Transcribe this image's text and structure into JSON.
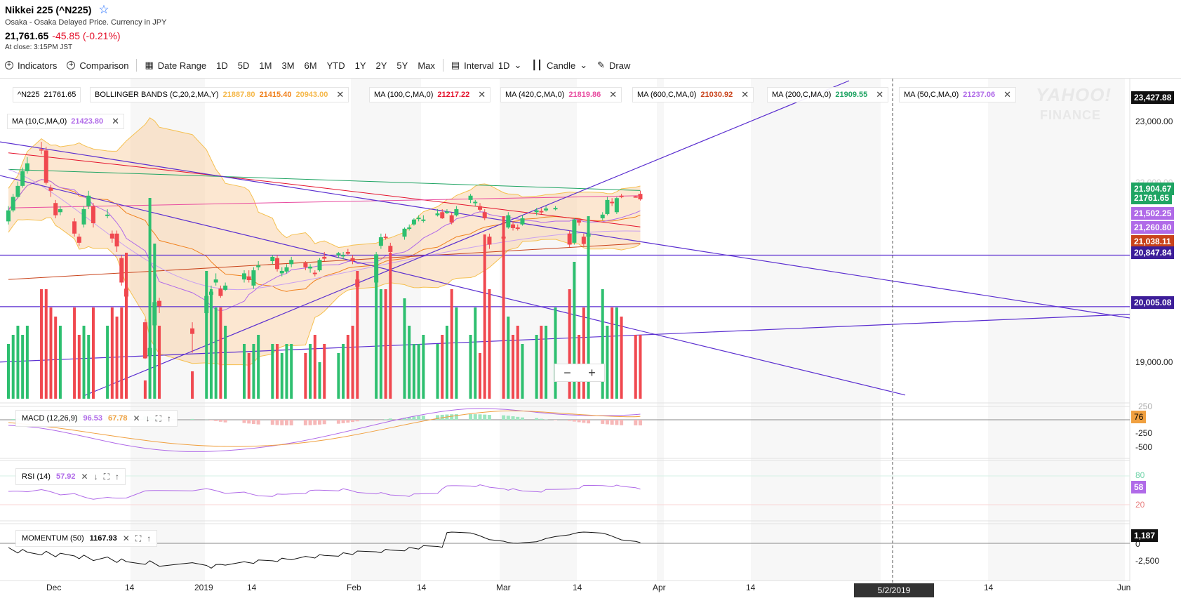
{
  "header": {
    "title": "Nikkei 225 (^N225)",
    "subtitle": "Osaka - Osaka Delayed Price. Currency in JPY",
    "price": "21,761.65",
    "change": "-45.85 (-0.21%)",
    "close_time": "At close: 3:15PM JST"
  },
  "toolbar": {
    "indicators": "Indicators",
    "comparison": "Comparison",
    "date_range": "Date Range",
    "ranges": [
      "1D",
      "5D",
      "1M",
      "3M",
      "6M",
      "YTD",
      "1Y",
      "2Y",
      "5Y",
      "Max"
    ],
    "interval_label": "Interval",
    "interval_value": "1D",
    "chart_type": "Candle",
    "draw": "Draw"
  },
  "legend": {
    "symbol": "^N225",
    "symbol_value": "21761.65",
    "bollinger": {
      "label": "BOLLINGER BANDS (C,20,2,MA,Y)",
      "upper": "21887.80",
      "middle": "21415.40",
      "lower": "20943.00"
    },
    "ma100": {
      "label": "MA (100,C,MA,0)",
      "value": "21217.22"
    },
    "ma420": {
      "label": "MA (420,C,MA,0)",
      "value": "21819.86"
    },
    "ma600": {
      "label": "MA (600,C,MA,0)",
      "value": "21030.92"
    },
    "ma200": {
      "label": "MA (200,C,MA,0)",
      "value": "21909.55"
    },
    "ma50": {
      "label": "MA (50,C,MA,0)",
      "value": "21237.06"
    },
    "ma10": {
      "label": "MA (10,C,MA,0)",
      "value": "21423.80"
    }
  },
  "logo": {
    "line1": "YAHOO!",
    "line2": "FINANCE"
  },
  "price_axis": {
    "labels": [
      "23,000.00",
      "22,000.00",
      "19,000.00"
    ],
    "boxes": [
      {
        "text": "23,427.88",
        "color": "#111111"
      },
      {
        "text": "21,904.67",
        "color": "#1fa463"
      },
      {
        "text": "21761.65",
        "color": "#1fa463"
      },
      {
        "text": "21,502.25",
        "color": "#b06ae8"
      },
      {
        "text": "21,260.80",
        "color": "#b06ae8"
      },
      {
        "text": "21,038.11",
        "color": "#c9431b"
      },
      {
        "text": "20,847.84",
        "color": "#3d1e99"
      },
      {
        "text": "20,005.08",
        "color": "#3d1e99"
      }
    ]
  },
  "macd": {
    "label": "MACD (12,26,9)",
    "v1": "96.53",
    "v2": "67.78",
    "axis": [
      "250",
      "-250",
      "-500"
    ],
    "box": "76"
  },
  "rsi": {
    "label": "RSI (14)",
    "value": "57.92",
    "axis": [
      "80",
      "20"
    ],
    "box": "58"
  },
  "momentum": {
    "label": "MOMENTUM (50)",
    "value": "1167.93",
    "axis": [
      "0",
      "-2,500"
    ],
    "box": "1,187"
  },
  "x_axis": {
    "labels": [
      "Dec",
      "14",
      "2019",
      "14",
      "Feb",
      "14",
      "Mar",
      "14",
      "Apr",
      "14",
      "14",
      "Jun"
    ],
    "crosshair_date": "5/2/2019"
  },
  "colors": {
    "up": "#2dbf6f",
    "down": "#f0484f",
    "band": "#f8c99a",
    "ma10": "#b06ae8",
    "ma100": "#e4112b",
    "ma200": "#1fa463",
    "ma420": "#e84ca0",
    "ma600": "#c9431b",
    "trend": "#5b2fd0"
  },
  "chart_data": {
    "type": "candlestick",
    "title": "Nikkei 225 (^N225)",
    "ylim": [
      18500,
      23700
    ],
    "start": "2018-11-26",
    "candles": [
      [
        "2018-11-26",
        21400,
        21650,
        21350,
        21580
      ],
      [
        "2018-11-27",
        21580,
        21850,
        21550,
        21800
      ],
      [
        "2018-11-28",
        21800,
        22050,
        21780,
        21980
      ],
      [
        "2018-11-29",
        21980,
        22280,
        21950,
        22220
      ],
      [
        "2018-11-30",
        22220,
        22450,
        22180,
        22350
      ],
      [
        "2018-12-03",
        22580,
        22700,
        22500,
        22570
      ],
      [
        "2018-12-04",
        22560,
        22620,
        22000,
        22030
      ],
      [
        "2018-12-05",
        21950,
        22000,
        21800,
        21900
      ],
      [
        "2018-12-06",
        21700,
        21750,
        21450,
        21500
      ],
      [
        "2018-12-07",
        21550,
        21650,
        21500,
        21600
      ],
      [
        "2018-12-10",
        21400,
        21450,
        21150,
        21200
      ],
      [
        "2018-12-11",
        21150,
        21200,
        21000,
        21050
      ],
      [
        "2018-12-12",
        21350,
        21650,
        21300,
        21600
      ],
      [
        "2018-12-13",
        21650,
        21900,
        21600,
        21820
      ],
      [
        "2018-12-14",
        21650,
        21700,
        21300,
        21370
      ],
      [
        "2018-12-17",
        21500,
        21600,
        21450,
        21510
      ],
      [
        "2018-12-18",
        21200,
        21250,
        21050,
        21120
      ],
      [
        "2018-12-19",
        21200,
        21250,
        20900,
        20990
      ],
      [
        "2018-12-20",
        20800,
        20850,
        20350,
        20400
      ],
      [
        "2018-12-21",
        20300,
        20350,
        20150,
        20170
      ],
      [
        "2018-12-25",
        19750,
        19800,
        19150,
        19160
      ],
      [
        "2018-12-26",
        19200,
        19350,
        18950,
        19330
      ],
      [
        "2018-12-27",
        19700,
        20200,
        19650,
        20080
      ],
      [
        "2018-12-28",
        20100,
        20150,
        19900,
        20010
      ],
      [
        "2019-01-04",
        19650,
        19750,
        19250,
        19560
      ],
      [
        "2019-01-07",
        19900,
        20280,
        19850,
        20180
      ],
      [
        "2019-01-08",
        20200,
        20350,
        20150,
        20250
      ],
      [
        "2019-01-09",
        20400,
        20550,
        20350,
        20450
      ],
      [
        "2019-01-10",
        20300,
        20350,
        20150,
        20180
      ],
      [
        "2019-01-11",
        20280,
        20400,
        20260,
        20350
      ],
      [
        "2019-01-15",
        20450,
        20600,
        20400,
        20550
      ],
      [
        "2019-01-16",
        20500,
        20600,
        20400,
        20440
      ],
      [
        "2019-01-17",
        20350,
        20650,
        20300,
        20600
      ],
      [
        "2019-01-18",
        20650,
        20750,
        20600,
        20680
      ],
      [
        "2019-01-21",
        20750,
        20850,
        20700,
        20820
      ],
      [
        "2019-01-22",
        20800,
        20850,
        20580,
        20620
      ],
      [
        "2019-01-23",
        20550,
        20650,
        20500,
        20590
      ],
      [
        "2019-01-24",
        20580,
        20700,
        20550,
        20650
      ],
      [
        "2019-01-25",
        20700,
        20820,
        20650,
        20770
      ],
      [
        "2019-01-28",
        20720,
        20750,
        20600,
        20650
      ],
      [
        "2019-01-29",
        20630,
        20700,
        20560,
        20660
      ],
      [
        "2019-01-30",
        20560,
        20600,
        20500,
        20550
      ],
      [
        "2019-01-31",
        20600,
        20800,
        20580,
        20770
      ],
      [
        "2019-02-01",
        20820,
        20900,
        20750,
        20790
      ],
      [
        "2019-02-04",
        20850,
        20900,
        20800,
        20880
      ],
      [
        "2019-02-05",
        20850,
        20900,
        20780,
        20850
      ],
      [
        "2019-02-06",
        20900,
        20950,
        20850,
        20870
      ],
      [
        "2019-02-07",
        20800,
        20850,
        20700,
        20750
      ],
      [
        "2019-02-08",
        20450,
        20500,
        20300,
        20330
      ],
      [
        "2019-02-12",
        20400,
        20900,
        20380,
        20860
      ],
      [
        "2019-02-13",
        21000,
        21200,
        20950,
        21140
      ],
      [
        "2019-02-14",
        21150,
        21200,
        21100,
        21140
      ],
      [
        "2019-02-15",
        21000,
        21050,
        20850,
        20900
      ],
      [
        "2019-02-18",
        21150,
        21300,
        21100,
        21280
      ],
      [
        "2019-02-19",
        21300,
        21350,
        21250,
        21300
      ],
      [
        "2019-02-20",
        21350,
        21450,
        21330,
        21430
      ],
      [
        "2019-02-21",
        21450,
        21500,
        21400,
        21460
      ],
      [
        "2019-02-22",
        21420,
        21500,
        21380,
        21430
      ],
      [
        "2019-02-25",
        21500,
        21600,
        21480,
        21530
      ],
      [
        "2019-02-26",
        21550,
        21600,
        21440,
        21450
      ],
      [
        "2019-02-27",
        21550,
        21600,
        21520,
        21560
      ],
      [
        "2019-02-28",
        21500,
        21550,
        21350,
        21380
      ],
      [
        "2019-03-01",
        21500,
        21650,
        21480,
        21600
      ],
      [
        "2019-03-04",
        21750,
        21850,
        21700,
        21820
      ],
      [
        "2019-03-05",
        21700,
        21750,
        21650,
        21720
      ],
      [
        "2019-03-06",
        21650,
        21700,
        21560,
        21590
      ],
      [
        "2019-03-07",
        21550,
        21600,
        21420,
        21450
      ],
      [
        "2019-03-08",
        21150,
        21200,
        20950,
        21020
      ],
      [
        "2019-03-11",
        21150,
        21250,
        21100,
        21120
      ],
      [
        "2019-03-12",
        21300,
        21550,
        21280,
        21500
      ],
      [
        "2019-03-13",
        21350,
        21400,
        21250,
        21290
      ],
      [
        "2019-03-14",
        21300,
        21350,
        21250,
        21290
      ],
      [
        "2019-03-15",
        21350,
        21500,
        21330,
        21450
      ],
      [
        "2019-03-18",
        21550,
        21620,
        21500,
        21580
      ],
      [
        "2019-03-19",
        21570,
        21620,
        21520,
        21560
      ],
      [
        "2019-03-20",
        21580,
        21650,
        21560,
        21610
      ],
      [
        "2019-03-22",
        21620,
        21650,
        21580,
        21620
      ],
      [
        "2019-03-25",
        21200,
        21250,
        20980,
        21020
      ],
      [
        "2019-03-26",
        21050,
        21450,
        21020,
        21430
      ],
      [
        "2019-03-27",
        21420,
        21450,
        21330,
        21380
      ],
      [
        "2019-03-28",
        21150,
        21200,
        21000,
        21030
      ],
      [
        "2019-03-29",
        21150,
        21250,
        21140,
        21200
      ],
      [
        "2019-04-01",
        21450,
        21550,
        21420,
        21510
      ],
      [
        "2019-04-02",
        21520,
        21800,
        21500,
        21750
      ],
      [
        "2019-04-03",
        21720,
        21780,
        21650,
        21710
      ],
      [
        "2019-04-04",
        21550,
        21800,
        21520,
        21780
      ],
      [
        "2019-04-05",
        21820,
        21850,
        21780,
        21810
      ],
      [
        "2019-04-08",
        21810,
        21820,
        21790,
        21800
      ],
      [
        "2019-04-09",
        21850,
        21900,
        21740,
        21760
      ]
    ]
  }
}
